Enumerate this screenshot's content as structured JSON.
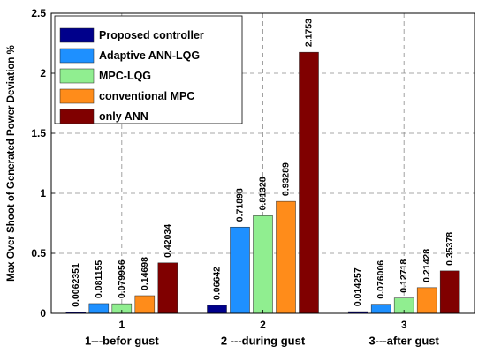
{
  "chart_data": {
    "type": "bar",
    "categories": [
      "1",
      "2",
      "3"
    ],
    "category_captions": [
      "1---befor gust",
      "2 ---during gust",
      "3---after gust"
    ],
    "ylabel": "Max Over Shoot of Generated Power Deviation %",
    "xlabel": "",
    "ylim": [
      0,
      2.5
    ],
    "yticks": [
      "0",
      "0.5",
      "1",
      "1.5",
      "2",
      "2.5"
    ],
    "grid": true,
    "legend_position": "top-left",
    "series": [
      {
        "name": "Proposed controller",
        "color": "#00008b",
        "values": [
          0.0062351,
          0.06642,
          0.014257
        ],
        "labels": [
          "0.0062351",
          "0.06642",
          "0.014257"
        ]
      },
      {
        "name": "Adaptive ANN-LQG",
        "color": "#1e90ff",
        "values": [
          0.081155,
          0.71898,
          0.076006
        ],
        "labels": [
          "0.081155",
          "0.71898",
          "0.076006"
        ]
      },
      {
        "name": " MPC-LQG",
        "color": "#90ee90",
        "values": [
          0.079956,
          0.81328,
          0.12718
        ],
        "labels": [
          "0.079956",
          "0.81328",
          "0.12718"
        ]
      },
      {
        "name": "conventional MPC",
        "color": "#ff8c1a",
        "values": [
          0.14698,
          0.93289,
          0.21428
        ],
        "labels": [
          "0.14698",
          "0.93289",
          "0.21428"
        ]
      },
      {
        "name": "only ANN",
        "color": "#800000",
        "values": [
          0.42034,
          2.1753,
          0.35378
        ],
        "labels": [
          "0.42034",
          "2.1753",
          "0.35378"
        ]
      }
    ]
  }
}
